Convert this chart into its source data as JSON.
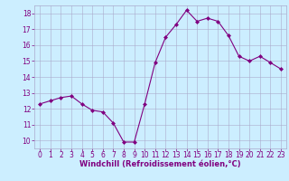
{
  "x": [
    0,
    1,
    2,
    3,
    4,
    5,
    6,
    7,
    8,
    9,
    10,
    11,
    12,
    13,
    14,
    15,
    16,
    17,
    18,
    19,
    20,
    21,
    22,
    23
  ],
  "y": [
    12.3,
    12.5,
    12.7,
    12.8,
    12.3,
    11.9,
    11.8,
    11.1,
    9.9,
    9.9,
    12.3,
    14.9,
    16.5,
    17.3,
    18.2,
    17.5,
    17.7,
    17.5,
    16.6,
    15.3,
    15.0,
    15.3,
    14.9,
    14.5
  ],
  "line_color": "#800080",
  "marker": "D",
  "marker_size": 2,
  "bg_color": "#cceeff",
  "grid_color": "#aaaacc",
  "xlabel": "Windchill (Refroidissement éolien,°C)",
  "xlabel_color": "#800080",
  "tick_color": "#800080",
  "ylim": [
    9.5,
    18.5
  ],
  "yticks": [
    10,
    11,
    12,
    13,
    14,
    15,
    16,
    17,
    18
  ],
  "xticks": [
    0,
    1,
    2,
    3,
    4,
    5,
    6,
    7,
    8,
    9,
    10,
    11,
    12,
    13,
    14,
    15,
    16,
    17,
    18,
    19,
    20,
    21,
    22,
    23
  ],
  "tick_fontsize": 5.5,
  "xlabel_fontsize": 6.0,
  "linewidth": 0.8
}
